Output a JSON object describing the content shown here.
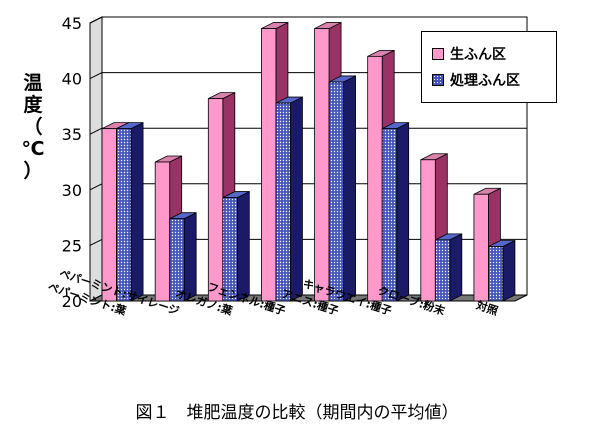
{
  "chart_data": {
    "type": "bar",
    "bar_style": "3d-clustered",
    "categories": [
      "ペパーミント:葉",
      "ペパーミント:サイレージ",
      "オレガノ:葉",
      "フェンネル:種子",
      "アニス:種子",
      "キャラウエイ:種子",
      "クローブ:粉末",
      "対照"
    ],
    "series": [
      {
        "name": "生ふん区",
        "values": [
          35.5,
          32.5,
          38.2,
          44.5,
          44.5,
          42.0,
          32.7,
          29.6
        ],
        "color": "#ff99cc",
        "side_color": "#993366"
      },
      {
        "name": "処理ふん区",
        "values": [
          35.5,
          27.4,
          29.3,
          37.8,
          39.7,
          35.5,
          25.5,
          24.9
        ],
        "color": "#4455bb",
        "pattern": "dotted",
        "side_color": "#1a1a66"
      }
    ],
    "ylim": [
      20,
      45
    ],
    "yticks": [
      "20",
      "25",
      "30",
      "35",
      "40",
      "45"
    ],
    "ylabel": [
      "温",
      "度",
      "（",
      "℃",
      "）"
    ],
    "grid": true,
    "legend_position": "top-right",
    "plot_background": "#ffffff",
    "floor_color": "#777777"
  },
  "caption": "図１　堆肥温度の比較（期間内の平均値）"
}
